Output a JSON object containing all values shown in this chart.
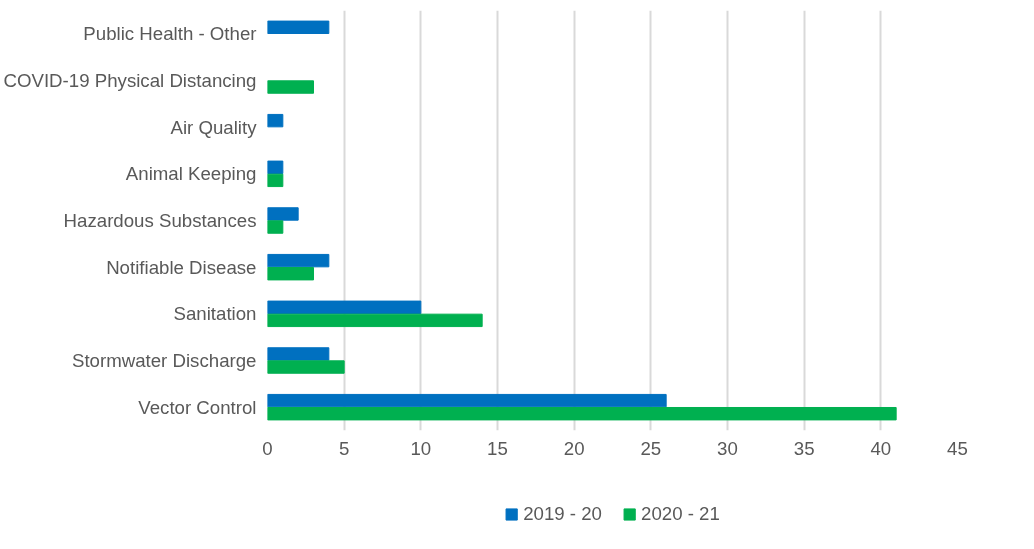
{
  "chart_data": {
    "type": "bar",
    "orientation": "horizontal",
    "categories": [
      "Public Health - Other",
      "COVID-19 Physical Distancing",
      "Air Quality",
      "Animal Keeping",
      "Hazardous Substances",
      "Notifiable Disease",
      "Sanitation",
      "Stormwater Discharge",
      "Vector Control"
    ],
    "series": [
      {
        "name": "2019 - 20",
        "color": "#0070c0",
        "values": [
          4,
          null,
          1,
          1,
          2,
          4,
          10,
          4,
          26
        ]
      },
      {
        "name": "2020 - 21",
        "color": "#00b050",
        "values": [
          null,
          3,
          null,
          1,
          1,
          3,
          14,
          5,
          41
        ]
      }
    ],
    "xlim": [
      0,
      45
    ],
    "xticks": [
      0,
      5,
      10,
      15,
      20,
      25,
      30,
      35,
      40,
      45
    ],
    "grid": "x",
    "legend": "bottom"
  }
}
